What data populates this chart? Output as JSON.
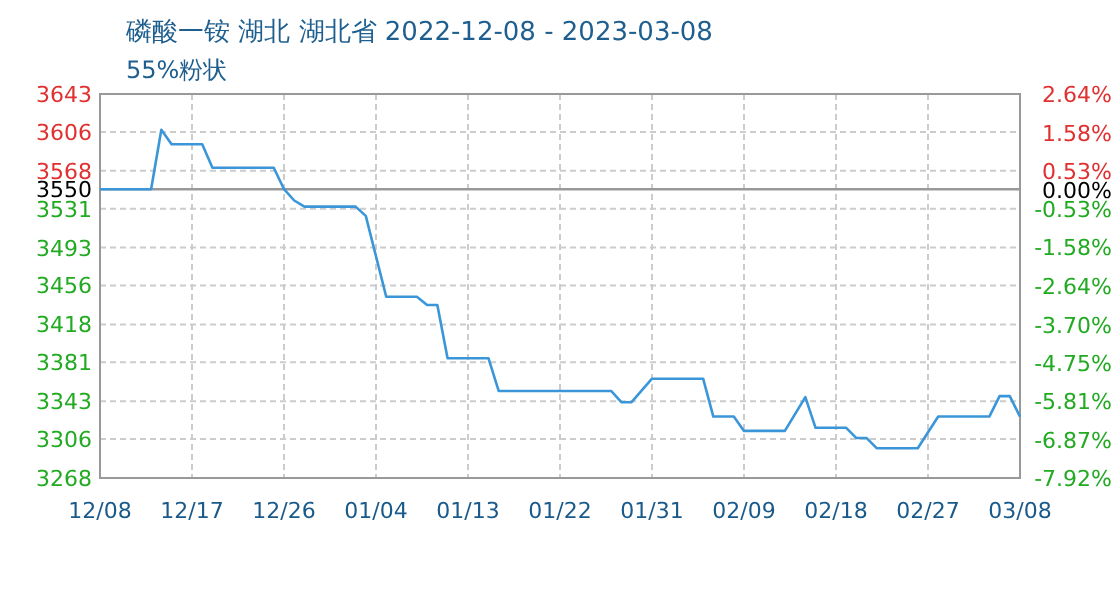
{
  "chart_data": {
    "type": "line",
    "title": "磷酸一铵 湖北 湖北省 2022-12-08 - 2023-03-08",
    "subtitle": "55%粉状",
    "x": [
      "2022-12-08",
      "2022-12-13",
      "2022-12-14",
      "2022-12-15",
      "2022-12-18",
      "2022-12-19",
      "2022-12-25",
      "2022-12-26",
      "2022-12-27",
      "2022-12-28",
      "2023-01-02",
      "2023-01-03",
      "2023-01-05",
      "2023-01-08",
      "2023-01-09",
      "2023-01-10",
      "2023-01-11",
      "2023-01-15",
      "2023-01-16",
      "2023-01-27",
      "2023-01-28",
      "2023-01-29",
      "2023-01-31",
      "2023-02-05",
      "2023-02-06",
      "2023-02-08",
      "2023-02-09",
      "2023-02-13",
      "2023-02-15",
      "2023-02-16",
      "2023-02-19",
      "2023-02-20",
      "2023-02-21",
      "2023-02-22",
      "2023-02-26",
      "2023-02-28",
      "2023-03-05",
      "2023-03-06",
      "2023-03-07",
      "2023-03-08"
    ],
    "series": [
      {
        "color": "#3a96d8",
        "values": [
          3550,
          3550,
          3608,
          3594,
          3594,
          3571,
          3571,
          3550,
          3539,
          3533,
          3533,
          3524,
          3445,
          3445,
          3437,
          3437,
          3385,
          3385,
          3353,
          3353,
          3342,
          3342,
          3365,
          3365,
          3328,
          3328,
          3314,
          3314,
          3347,
          3317,
          3317,
          3307,
          3307,
          3297,
          3297,
          3328,
          3328,
          3348,
          3348,
          3328
        ]
      }
    ],
    "xlim": [
      "2022-12-08",
      "2023-03-08"
    ],
    "xticks": [
      {
        "value": "2022-12-08",
        "label": "12/08"
      },
      {
        "value": "2022-12-17",
        "label": "12/17"
      },
      {
        "value": "2022-12-26",
        "label": "12/26"
      },
      {
        "value": "2023-01-04",
        "label": "01/04"
      },
      {
        "value": "2023-01-13",
        "label": "01/13"
      },
      {
        "value": "2023-01-22",
        "label": "01/22"
      },
      {
        "value": "2023-01-31",
        "label": "01/31"
      },
      {
        "value": "2023-02-09",
        "label": "02/09"
      },
      {
        "value": "2023-02-18",
        "label": "02/18"
      },
      {
        "value": "2023-02-27",
        "label": "02/27"
      },
      {
        "value": "2023-03-08",
        "label": "03/08"
      }
    ],
    "ylim": [
      3268,
      3643
    ],
    "yticks": [
      3268,
      3306,
      3343,
      3381,
      3418,
      3456,
      3493,
      3531,
      3550,
      3568,
      3606,
      3643
    ],
    "y2lim": [
      -7.92,
      2.64
    ],
    "y2ticks": [
      {
        "value": -7.92,
        "label": "-7.92%"
      },
      {
        "value": -6.87,
        "label": "-6.87%"
      },
      {
        "value": -5.81,
        "label": "-5.81%"
      },
      {
        "value": -4.75,
        "label": "-4.75%"
      },
      {
        "value": -3.7,
        "label": "-3.70%"
      },
      {
        "value": -2.64,
        "label": "-2.64%"
      },
      {
        "value": -1.58,
        "label": "-1.58%"
      },
      {
        "value": -0.53,
        "label": "-0.53%"
      },
      {
        "value": 0,
        "label": "0.00%"
      },
      {
        "value": 0.53,
        "label": "0.53%"
      },
      {
        "value": 1.58,
        "label": "1.58%"
      },
      {
        "value": 2.64,
        "label": "2.64%"
      }
    ],
    "ref_lines": [
      {
        "axis": "y",
        "value": 3550,
        "color": "#999999"
      }
    ],
    "grid": true,
    "line_style": "solid"
  }
}
